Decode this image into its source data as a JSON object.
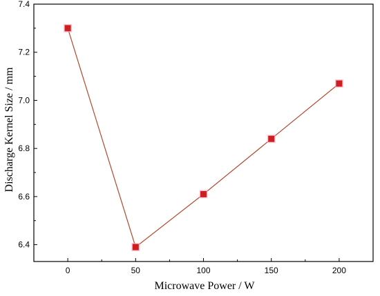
{
  "chart_data": {
    "type": "line",
    "title": "",
    "xlabel": "Microwave Power / W",
    "ylabel": "Discharge Kernel Size / mm",
    "xlim": [
      -25,
      225
    ],
    "ylim": [
      6.33,
      7.4
    ],
    "xticks": [
      0,
      50,
      100,
      150,
      200
    ],
    "yticks": [
      6.4,
      6.6,
      6.8,
      7.0,
      7.2,
      7.4
    ],
    "xtick_labels": [
      "0",
      "50",
      "100",
      "150",
      "200"
    ],
    "ytick_labels": [
      "6.4",
      "6.6",
      "6.8",
      "7.0",
      "7.2",
      "7.4"
    ],
    "grid": false,
    "legend": "none",
    "series": [
      {
        "x": [
          0,
          50,
          100,
          150,
          200
        ],
        "y": [
          7.3,
          6.39,
          6.61,
          6.84,
          7.07
        ],
        "line_color": "#b5462f",
        "marker": "square",
        "marker_color": "#cc1f1f",
        "marker_halo_color": "#f3b3c9"
      }
    ]
  }
}
